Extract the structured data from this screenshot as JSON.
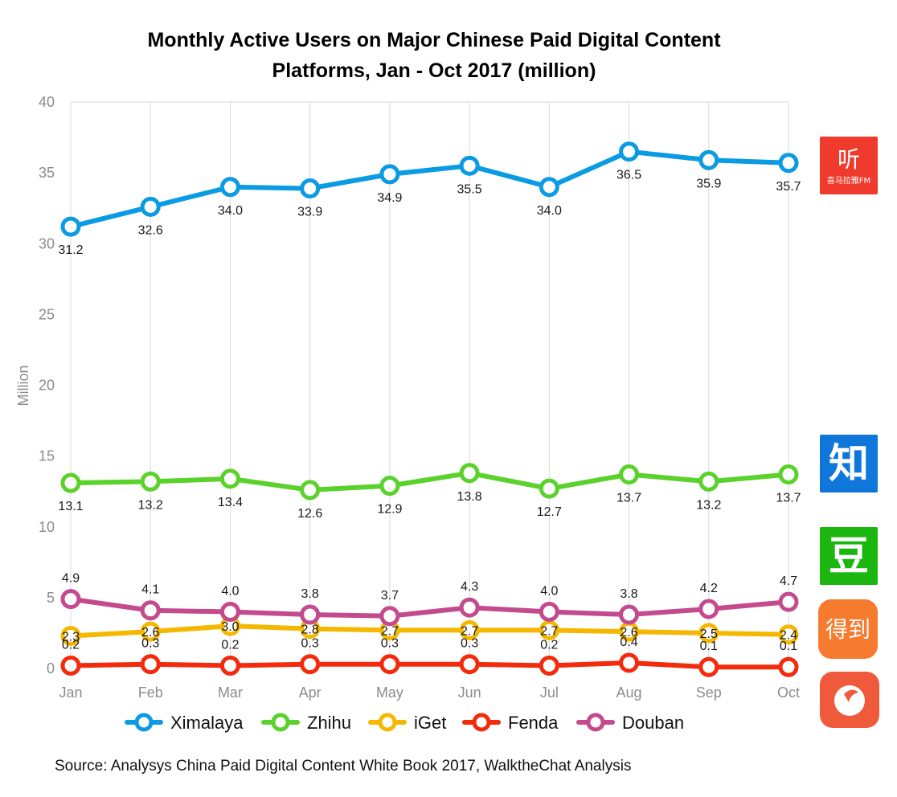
{
  "chart_data": {
    "type": "line",
    "title_lines": [
      "Monthly Active Users on Major Chinese Paid Digital Content",
      "Platforms, Jan - Oct 2017 (million)"
    ],
    "ylabel": "Million",
    "xlabel": "",
    "ylim": [
      0,
      40
    ],
    "yticks": [
      0,
      5,
      10,
      15,
      20,
      25,
      30,
      35,
      40
    ],
    "grid": "vertical",
    "legend_position": "bottom",
    "categories": [
      "Jan",
      "Feb",
      "Mar",
      "Apr",
      "May",
      "Jun",
      "Jul",
      "Aug",
      "Sep",
      "Oct"
    ],
    "series": [
      {
        "name": "Ximalaya",
        "color": "#0b9be3",
        "values": [
          31.2,
          32.6,
          34.0,
          33.9,
          34.9,
          35.5,
          34.0,
          36.5,
          35.9,
          35.7
        ],
        "label_pos": "below"
      },
      {
        "name": "Zhihu",
        "color": "#5ad22b",
        "values": [
          13.1,
          13.2,
          13.4,
          12.6,
          12.9,
          13.8,
          12.7,
          13.7,
          13.2,
          13.7
        ],
        "label_pos": "below"
      },
      {
        "name": "iGet",
        "color": "#f4b800",
        "values": [
          2.3,
          2.6,
          3.0,
          2.8,
          2.7,
          2.7,
          2.7,
          2.6,
          2.5,
          2.4
        ],
        "label_pos": "center"
      },
      {
        "name": "Fenda",
        "color": "#f42a0c",
        "values": [
          0.2,
          0.3,
          0.2,
          0.3,
          0.3,
          0.3,
          0.2,
          0.4,
          0.1,
          0.1
        ],
        "label_pos": "above"
      },
      {
        "name": "Douban",
        "color": "#c44a8e",
        "values": [
          4.9,
          4.1,
          4.0,
          3.8,
          3.7,
          4.3,
          4.0,
          3.8,
          4.2,
          4.7
        ],
        "label_pos": "above"
      }
    ],
    "source": "Source: Analysys China Paid Digital Content White Book 2017, WalktheChat Analysis"
  },
  "logos": [
    {
      "name": "ximalaya",
      "bg": "#ef3b2d",
      "glyph": "听",
      "caption": "喜马拉雅FM"
    },
    {
      "name": "zhihu",
      "bg": "#0e77d9",
      "glyph": "知",
      "caption": ""
    },
    {
      "name": "douban",
      "bg": "#1bb70f",
      "glyph": "豆",
      "caption": ""
    },
    {
      "name": "iget",
      "bg": "#f77b2f",
      "glyph": "得到",
      "caption": ""
    },
    {
      "name": "fenda",
      "bg": "#ef5a3a",
      "glyph": "",
      "caption": ""
    }
  ]
}
